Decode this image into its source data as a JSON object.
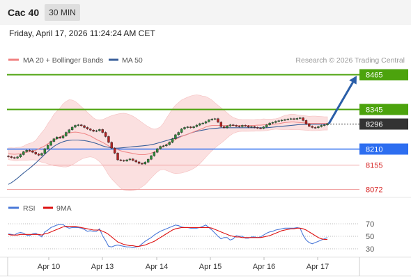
{
  "header": {
    "symbol": "Cac 40",
    "timeframe": "30 MIN",
    "datetime": "Friday, April 17, 2026 11:24:24 AM CET"
  },
  "legend": {
    "ma20": "MA 20 + Bollinger Bands",
    "ma50": "MA 50",
    "credit": "Research © 2026 Trading Central",
    "ma20_color": "#f08080",
    "ma50_color": "#3a5f9a"
  },
  "levels": [
    {
      "label": "8465",
      "value": 8465,
      "style": "green-tag",
      "color": "#4ca30d"
    },
    {
      "label": "8345",
      "value": 8345,
      "style": "green-tag",
      "color": "#4ca30d"
    },
    {
      "label": "8296",
      "value": 8296,
      "style": "dark-tag",
      "color": "#333333"
    },
    {
      "label": "8210",
      "value": 8210,
      "style": "blue-tag",
      "color": "#2d6ef0"
    },
    {
      "label": "8155",
      "value": 8155,
      "style": "red-text",
      "color": "#d62020"
    },
    {
      "label": "8072",
      "value": 8072,
      "style": "red-text",
      "color": "#d62020"
    }
  ],
  "rsi_legend": {
    "rsi": "RSI",
    "ma": "9MA",
    "rsi_color": "#4a78d8",
    "ma_color": "#dd1111"
  },
  "rsi_levels": [
    "70",
    "50",
    "30"
  ],
  "x_labels": [
    "Apr 10",
    "Apr 13",
    "Apr 14",
    "Apr 15",
    "Apr 16",
    "Apr 17"
  ],
  "chart_data": {
    "type": "candlestick",
    "ylim": [
      8050,
      8480
    ],
    "last_price": 8296,
    "forecast_target": 8465,
    "close": [
      8183,
      8180,
      8178,
      8182,
      8190,
      8200,
      8205,
      8203,
      8198,
      8192,
      8188,
      8194,
      8210,
      8222,
      8235,
      8244,
      8250,
      8247,
      8254,
      8266,
      8275,
      8284,
      8290,
      8292,
      8289,
      8283,
      8278,
      8274,
      8270,
      8272,
      8276,
      8266,
      8252,
      8232,
      8212,
      8195,
      8172,
      8170,
      8168,
      8172,
      8175,
      8170,
      8165,
      8160,
      8158,
      8164,
      8174,
      8186,
      8198,
      8210,
      8218,
      8220,
      8224,
      8232,
      8244,
      8258,
      8266,
      8278,
      8283,
      8285,
      8282,
      8286,
      8291,
      8296,
      8298,
      8303,
      8309,
      8312,
      8313,
      8301,
      8286,
      8282,
      8288,
      8292,
      8290,
      8287,
      8286,
      8290,
      8288,
      8284,
      8286,
      8283,
      8281,
      8280,
      8285,
      8292,
      8298,
      8300,
      8304,
      8306,
      8308,
      8310,
      8312,
      8313,
      8311,
      8314,
      8316,
      8307,
      8295,
      8287,
      8283,
      8282,
      8286,
      8290,
      8292,
      8296
    ],
    "ma20": [
      8193,
      8192,
      8191,
      8192,
      8193,
      8195,
      8198,
      8200,
      8202,
      8205,
      8210,
      8215,
      8220,
      8227,
      8233,
      8240,
      8245,
      8250,
      8256,
      8260,
      8264,
      8266,
      8267,
      8266,
      8264,
      8262,
      8258,
      8254,
      8248,
      8242,
      8237,
      8232,
      8226,
      8220,
      8215,
      8211,
      8207,
      8203,
      8200,
      8198,
      8196,
      8194,
      8192,
      8190,
      8190,
      8190,
      8192,
      8195,
      8199,
      8205,
      8211,
      8218,
      8225,
      8231,
      8237,
      8242,
      8247,
      8252,
      8256,
      8260,
      8264,
      8268,
      8272,
      8276,
      8280,
      8285,
      8288,
      8290,
      8290,
      8290,
      8290,
      8290,
      8290,
      8290,
      8290,
      8290,
      8290,
      8290,
      8290,
      8290,
      8290,
      8290,
      8291,
      8291,
      8292,
      8292,
      8293,
      8294,
      8295,
      8296,
      8298,
      8300,
      8301,
      8302,
      8302,
      8301,
      8300,
      8299,
      8298,
      8297,
      8297,
      8297,
      8297,
      8297,
      8297,
      8297
    ],
    "ma50": [
      8088,
      8094,
      8101,
      8109,
      8118,
      8127,
      8135,
      8143,
      8152,
      8161,
      8171,
      8181,
      8191,
      8201,
      8210,
      8218,
      8225,
      8230,
      8234,
      8237,
      8239,
      8240,
      8240,
      8240,
      8239,
      8238,
      8236,
      8234,
      8231,
      8228,
      8224,
      8220,
      8217,
      8215,
      8213,
      8212,
      8212,
      8213,
      8214,
      8215,
      8216,
      8217,
      8218,
      8219,
      8220,
      8221,
      8222,
      8224,
      8226,
      8229,
      8232,
      8235,
      8238,
      8241,
      8244,
      8247,
      8250,
      8253,
      8256,
      8260,
      8264,
      8267,
      8270,
      8272,
      8274,
      8276,
      8278,
      8279,
      8280,
      8281,
      8282,
      8282,
      8282,
      8282,
      8282,
      8282,
      8282,
      8282,
      8282,
      8282,
      8282,
      8282,
      8282,
      8282,
      8282,
      8282,
      8283,
      8284,
      8285,
      8286,
      8287,
      8288,
      8289,
      8290,
      8291,
      8292,
      8293,
      8293,
      8294,
      8294,
      8294,
      8294,
      8294,
      8294,
      8294,
      8294
    ],
    "rsi": [
      54,
      53,
      52,
      55,
      56,
      55,
      52,
      51,
      54,
      55,
      52,
      49,
      57,
      60,
      64,
      66,
      68,
      69,
      69,
      65,
      63,
      64,
      64,
      64,
      63,
      61,
      58,
      59,
      58,
      58,
      62,
      51,
      43,
      34,
      33,
      35,
      36,
      35,
      34,
      33,
      33,
      32,
      33,
      34,
      38,
      42,
      45,
      48,
      52,
      55,
      58,
      60,
      62,
      64,
      66,
      68,
      67,
      65,
      64,
      64,
      63,
      63,
      63,
      64,
      66,
      68,
      64,
      60,
      55,
      50,
      46,
      48,
      48,
      44,
      46,
      51,
      50,
      50,
      47,
      47,
      49,
      49,
      48,
      49,
      52,
      55,
      57,
      58,
      60,
      61,
      62,
      63,
      63,
      63,
      63,
      64,
      63,
      52,
      44,
      40,
      38,
      40,
      42,
      44,
      46,
      48
    ],
    "rsi_ma": [
      53,
      52,
      52,
      52,
      53,
      53,
      53,
      53,
      53,
      53,
      53,
      52,
      54,
      55,
      57,
      59,
      61,
      63,
      65,
      66,
      66,
      66,
      66,
      65,
      64,
      63,
      62,
      61,
      60,
      60,
      60,
      58,
      56,
      53,
      49,
      45,
      41,
      39,
      37,
      36,
      35,
      35,
      34,
      34,
      35,
      36,
      38,
      40,
      42,
      45,
      48,
      51,
      54,
      57,
      60,
      62,
      63,
      64,
      64,
      64,
      64,
      64,
      64,
      64,
      64,
      64,
      64,
      63,
      61,
      59,
      57,
      55,
      53,
      51,
      50,
      49,
      49,
      48,
      48,
      48,
      48,
      48,
      48,
      48,
      49,
      50,
      51,
      53,
      55,
      57,
      59,
      60,
      61,
      62,
      62,
      63,
      63,
      62,
      60,
      57,
      54,
      51,
      48,
      46,
      45,
      45
    ]
  }
}
